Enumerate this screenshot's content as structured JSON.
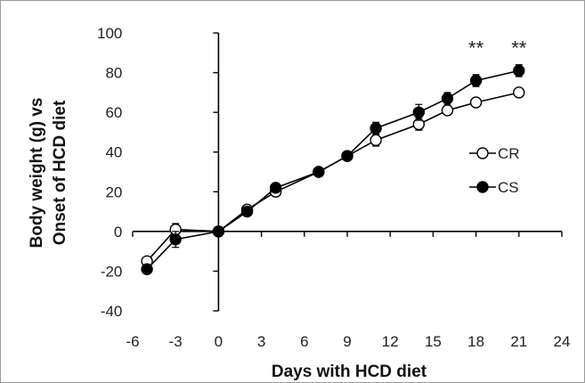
{
  "chart_data": {
    "type": "line",
    "xlabel": "Days with HCD diet",
    "ylabel_lines": [
      "Body weight (g) vs",
      "Onset of HCD diet"
    ],
    "xlim": [
      -6,
      24
    ],
    "ylim": [
      -40,
      100
    ],
    "x_ticks": [
      -6,
      -3,
      0,
      3,
      6,
      9,
      12,
      15,
      18,
      21,
      24
    ],
    "y_ticks": [
      -40,
      -20,
      0,
      20,
      40,
      60,
      80,
      100
    ],
    "grid": false,
    "legend_position": "right",
    "series": [
      {
        "name": "CR",
        "marker": "open-circle",
        "x": [
          -5,
          -3,
          0,
          2,
          4,
          7,
          9,
          11,
          14,
          16,
          18,
          21
        ],
        "y": [
          -15,
          1,
          0,
          11,
          20,
          30,
          38,
          46,
          54,
          61,
          65,
          70
        ],
        "err": [
          2,
          3,
          0,
          2,
          2,
          2,
          2,
          3,
          3,
          2,
          2,
          2
        ]
      },
      {
        "name": "CS",
        "marker": "filled-circle",
        "x": [
          -5,
          -3,
          0,
          2,
          4,
          7,
          9,
          11,
          14,
          16,
          18,
          21
        ],
        "y": [
          -19,
          -4,
          0,
          10,
          22,
          30,
          38,
          52,
          60,
          67,
          76,
          81
        ],
        "err": [
          2,
          4,
          0,
          2,
          2,
          2,
          2,
          3,
          4,
          3,
          3,
          3
        ]
      }
    ],
    "annotations": [
      {
        "text": "**",
        "x": 18,
        "y": 89
      },
      {
        "text": "**",
        "x": 21,
        "y": 89
      }
    ]
  }
}
